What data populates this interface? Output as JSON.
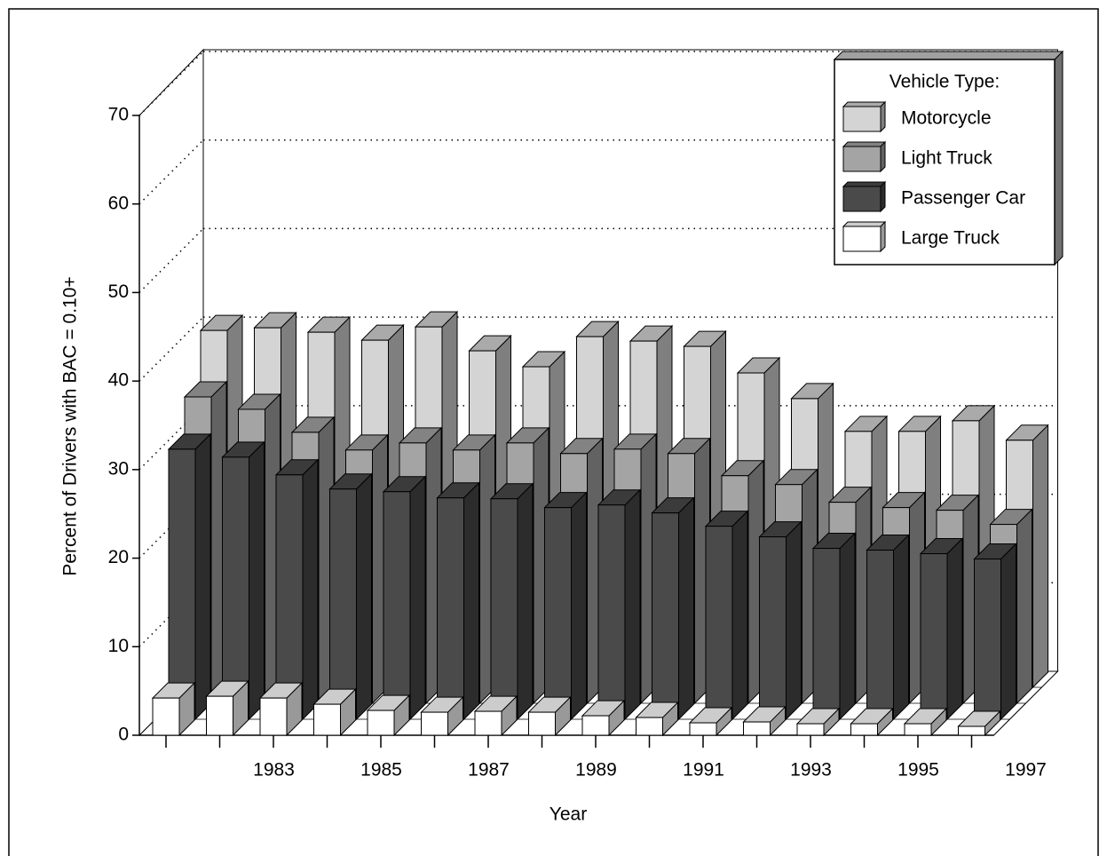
{
  "chart_data": {
    "type": "bar3d",
    "xlabel": "Year",
    "ylabel": "Percent of Drivers with BAC = 0.10+",
    "categories": [
      null,
      "1983",
      null,
      "1985",
      null,
      "1987",
      null,
      "1989",
      null,
      "1991",
      null,
      "1993",
      null,
      "1995",
      null,
      "1997"
    ],
    "legend_title": "Vehicle Type:",
    "series": [
      {
        "name": "Motorcycle",
        "color": "#d4d4d4",
        "values": [
          40.3,
          40.6,
          40.1,
          39.2,
          40.7,
          38.0,
          36.2,
          39.6,
          39.1,
          38.5,
          35.5,
          32.6,
          28.9,
          28.9,
          30.1,
          27.9
        ]
      },
      {
        "name": "Light Truck",
        "color": "#a4a4a4",
        "values": [
          34.6,
          33.2,
          30.6,
          28.6,
          29.4,
          28.6,
          29.4,
          28.2,
          28.7,
          28.2,
          25.7,
          24.7,
          22.7,
          22.1,
          21.8,
          20.2
        ]
      },
      {
        "name": "Passenger Car",
        "color": "#4a4a4a",
        "values": [
          30.5,
          29.6,
          27.6,
          26.0,
          25.7,
          25.0,
          24.9,
          23.9,
          24.2,
          23.3,
          21.8,
          20.6,
          19.3,
          19.1,
          18.7,
          18.1
        ]
      },
      {
        "name": "Large Truck",
        "color": "#ffffff",
        "values": [
          4.2,
          4.4,
          4.2,
          3.5,
          2.8,
          2.6,
          2.7,
          2.6,
          2.2,
          2.0,
          1.4,
          1.5,
          1.3,
          1.3,
          1.3,
          1.0
        ]
      }
    ],
    "ylim": [
      0,
      70
    ],
    "yticks": [
      0,
      10,
      20,
      30,
      40,
      50,
      60,
      70
    ],
    "grid": true
  }
}
